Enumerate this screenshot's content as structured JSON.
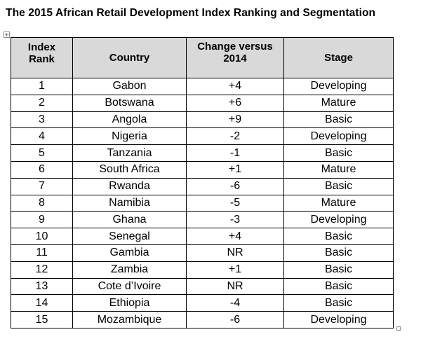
{
  "title": "The 2015 African Retail Development Index Ranking and Segmentation",
  "table": {
    "headers": {
      "rank_line1": "Index",
      "rank_line2": "Rank",
      "country": "Country",
      "change_line1": "Change versus",
      "change_line2": "2014",
      "stage": "Stage"
    },
    "rows": [
      {
        "rank": "1",
        "country": "Gabon",
        "change": "+4",
        "stage": "Developing"
      },
      {
        "rank": "2",
        "country": "Botswana",
        "change": "+6",
        "stage": "Mature"
      },
      {
        "rank": "3",
        "country": "Angola",
        "change": "+9",
        "stage": "Basic"
      },
      {
        "rank": "4",
        "country": "Nigeria",
        "change": "-2",
        "stage": "Developing"
      },
      {
        "rank": "5",
        "country": "Tanzania",
        "change": "-1",
        "stage": "Basic"
      },
      {
        "rank": "6",
        "country": "South Africa",
        "change": "+1",
        "stage": "Mature"
      },
      {
        "rank": "7",
        "country": "Rwanda",
        "change": "-6",
        "stage": "Basic"
      },
      {
        "rank": "8",
        "country": "Namibia",
        "change": "-5",
        "stage": "Mature"
      },
      {
        "rank": "9",
        "country": "Ghana",
        "change": "-3",
        "stage": "Developing"
      },
      {
        "rank": "10",
        "country": "Senegal",
        "change": "+4",
        "stage": "Basic"
      },
      {
        "rank": "11",
        "country": "Gambia",
        "change": "NR",
        "stage": "Basic"
      },
      {
        "rank": "12",
        "country": "Zambia",
        "change": "+1",
        "stage": "Basic"
      },
      {
        "rank": "13",
        "country": "Cote d’Ivoire",
        "change": "NR",
        "stage": "Basic"
      },
      {
        "rank": "14",
        "country": "Ethiopia",
        "change": "-4",
        "stage": "Basic"
      },
      {
        "rank": "15",
        "country": "Mozambique",
        "change": "-6",
        "stage": "Developing"
      }
    ]
  },
  "icons": {
    "move_handle": "move-handle-icon",
    "resize_handle": "resize-handle-icon"
  }
}
